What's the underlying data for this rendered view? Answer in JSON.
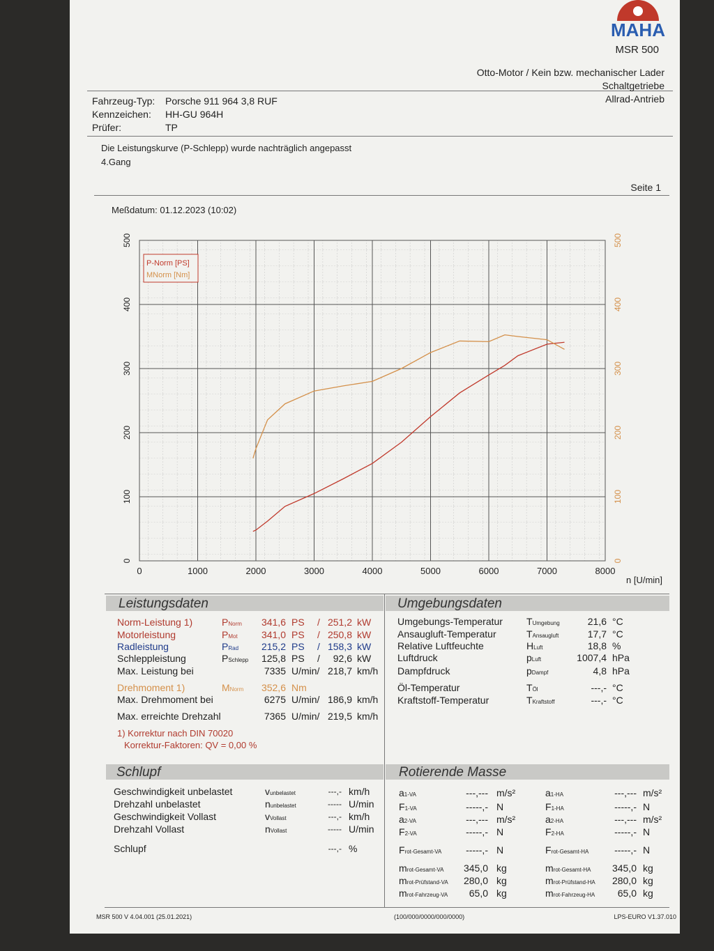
{
  "header": {
    "logo": "MAHA",
    "model": "MSR 500"
  },
  "vehicle": [
    {
      "label": "Fahrzeug-Typ:",
      "value": "Porsche 911 964 3,8 RUF"
    },
    {
      "label": "Kennzeichen:",
      "value": "HH-GU 964H"
    },
    {
      "label": "Prüfer:",
      "value": "TP"
    }
  ],
  "engine_info": [
    "Otto-Motor / Kein bzw. mechanischer Lader",
    "Schaltgetriebe",
    "Allrad-Antrieb"
  ],
  "note": [
    "Die Leistungskurve (P-Schlepp) wurde nachträglich angepasst",
    "4.Gang"
  ],
  "page": "Seite 1",
  "date": "Meßdatum: 01.12.2023 (10:02)",
  "chart_data": {
    "type": "line",
    "x_label": "n [U/min]",
    "x": [
      1950,
      2000,
      2200,
      2500,
      3000,
      3500,
      4000,
      4500,
      5000,
      5500,
      6000,
      6275,
      6500,
      7000,
      7300
    ],
    "series": [
      {
        "name": "P-Norm [PS]",
        "color": "#c0392b",
        "values": [
          46,
          48,
          62,
          85,
          105,
          128,
          152,
          185,
          225,
          262,
          290,
          305,
          320,
          338,
          341
        ]
      },
      {
        "name": "MNorm [Nm]",
        "color": "#d4904a",
        "axis": "y2",
        "values": [
          160,
          175,
          220,
          245,
          265,
          273,
          280,
          300,
          325,
          343,
          342,
          352.6,
          350,
          345,
          330
        ]
      }
    ],
    "xlim": [
      0,
      8000
    ],
    "xticks": [
      0,
      1000,
      2000,
      3000,
      4000,
      5000,
      6000,
      7000,
      8000
    ],
    "ylim": [
      0,
      500
    ],
    "yticks": [
      0,
      100,
      200,
      300,
      400,
      500
    ],
    "y2lim": [
      0,
      500
    ],
    "y2ticks": [
      0,
      100,
      200,
      300,
      400,
      500
    ],
    "grid": true,
    "legend": "upper left"
  },
  "leistungsdaten": {
    "title": "Leistungsdaten",
    "rows": [
      {
        "label": "Norm-Leistung 1)",
        "symbol": "PNorm",
        "value": "341,6",
        "unit": "PS",
        "sep": "/",
        "value2": "251,2",
        "unit2": "kW",
        "color": "#b03a2e"
      },
      {
        "label": "Motorleistung",
        "symbol": "PMot",
        "value": "341,0",
        "unit": "PS",
        "sep": "/",
        "value2": "250,8",
        "unit2": "kW",
        "color": "#b03a2e"
      },
      {
        "label": "Radleistung",
        "symbol": "PRad",
        "value": "215,2",
        "unit": "PS",
        "sep": "/",
        "value2": "158,3",
        "unit2": "kW",
        "color": "#1f3b8a"
      },
      {
        "label": "Schleppleistung",
        "symbol": "PSchlepp",
        "value": "125,8",
        "unit": "PS",
        "sep": "/",
        "value2": "92,6",
        "unit2": "kW",
        "color": "#222222"
      },
      {
        "label": "Max. Leistung bei",
        "value": "7335",
        "unit": "U/min/",
        "value2": "218,7",
        "unit2": "km/h",
        "color": "#222222"
      },
      {
        "label": "Drehmoment 1)",
        "symbol": "MNorm",
        "value": "352,6",
        "unit": "Nm",
        "color": "#d4904a"
      },
      {
        "label": "Max. Drehmoment bei",
        "value": "6275",
        "unit": "U/min/",
        "value2": "186,9",
        "unit2": "km/h",
        "color": "#222222"
      },
      {
        "label": "Max. erreichte Drehzahl",
        "value": "7365",
        "unit": "U/min/",
        "value2": "219,5",
        "unit2": "km/h",
        "color": "#222222"
      }
    ],
    "footnotes": [
      "1) Korrektur nach DIN 70020",
      "Korrektur-Faktoren: QV = 0,00 %"
    ]
  },
  "umgebungsdaten": {
    "title": "Umgebungsdaten",
    "rows": [
      {
        "label": "Umgebungs-Temperatur",
        "symbol": "TUmgebung",
        "value": "21,6",
        "unit": "°C"
      },
      {
        "label": "Ansaugluft-Temperatur",
        "symbol": "TAnsaugluft",
        "value": "17,7",
        "unit": "°C"
      },
      {
        "label": "Relative Luftfeuchte",
        "symbol": "HLuft",
        "value": "18,8",
        "unit": "%"
      },
      {
        "label": "Luftdruck",
        "symbol": "pLuft",
        "value": "1007,4",
        "unit": "hPa"
      },
      {
        "label": "Dampfdruck",
        "symbol": "pDampf",
        "value": "4,8",
        "unit": "hPa"
      },
      {
        "label": "Öl-Temperatur",
        "symbol": "TÖl",
        "value": "---,-",
        "unit": "°C"
      },
      {
        "label": "Kraftstoff-Temperatur",
        "symbol": "TKraftstoff",
        "value": "---,-",
        "unit": "°C"
      }
    ]
  },
  "schlupf": {
    "title": "Schlupf",
    "rows": [
      {
        "label": "Geschwindigkeit unbelastet",
        "symbol": "vunbelastet",
        "value": "---,-",
        "unit": "km/h"
      },
      {
        "label": "Drehzahl unbelastet",
        "symbol": "nunbelastet",
        "value": "-----",
        "unit": "U/min"
      },
      {
        "label": "Geschwindigkeit Vollast",
        "symbol": "vVollast",
        "value": "---,-",
        "unit": "km/h"
      },
      {
        "label": "Drehzahl Vollast",
        "symbol": "nVollast",
        "value": "-----",
        "unit": "U/min"
      },
      {
        "label": "Schlupf",
        "value": "---,-",
        "unit": "%"
      }
    ]
  },
  "rotierende_masse": {
    "title": "Rotierende Masse",
    "rows": [
      [
        {
          "symbol": "a1-VA",
          "value": "---,---",
          "unit": "m/s²"
        },
        {
          "symbol": "a1-HA",
          "value": "---,---",
          "unit": "m/s²"
        }
      ],
      [
        {
          "symbol": "F1-VA",
          "value": "-----,-",
          "unit": "N"
        },
        {
          "symbol": "F1-HA",
          "value": "-----,-",
          "unit": "N"
        }
      ],
      [
        {
          "symbol": "a2-VA",
          "value": "---,---",
          "unit": "m/s²"
        },
        {
          "symbol": "a2-HA",
          "value": "---,---",
          "unit": "m/s²"
        }
      ],
      [
        {
          "symbol": "F2-VA",
          "value": "-----,-",
          "unit": "N"
        },
        {
          "symbol": "F2-HA",
          "value": "-----,-",
          "unit": "N"
        }
      ],
      [
        {
          "symbol": "Frot-Gesamt-VA",
          "value": "-----,-",
          "unit": "N"
        },
        {
          "symbol": "Frot-Gesamt-HA",
          "value": "-----,-",
          "unit": "N"
        }
      ],
      [
        {
          "symbol": "mrot-Gesamt-VA",
          "value": "345,0",
          "unit": "kg"
        },
        {
          "symbol": "mrot-Gesamt-HA",
          "value": "345,0",
          "unit": "kg"
        }
      ],
      [
        {
          "symbol": "mrot-Prüfstand-VA",
          "value": "280,0",
          "unit": "kg"
        },
        {
          "symbol": "mrot-Prüfstand-HA",
          "value": "280,0",
          "unit": "kg"
        }
      ],
      [
        {
          "symbol": "mrot-Fahrzeug-VA",
          "value": "65,0",
          "unit": "kg"
        },
        {
          "symbol": "mrot-Fahrzeug-HA",
          "value": "65,0",
          "unit": "kg"
        }
      ]
    ]
  },
  "footer": [
    "MSR 500 V 4.04.001 (25.01.2021)",
    "(100/000/0000/000/0000)",
    "LPS-EURO V1.37.010"
  ]
}
